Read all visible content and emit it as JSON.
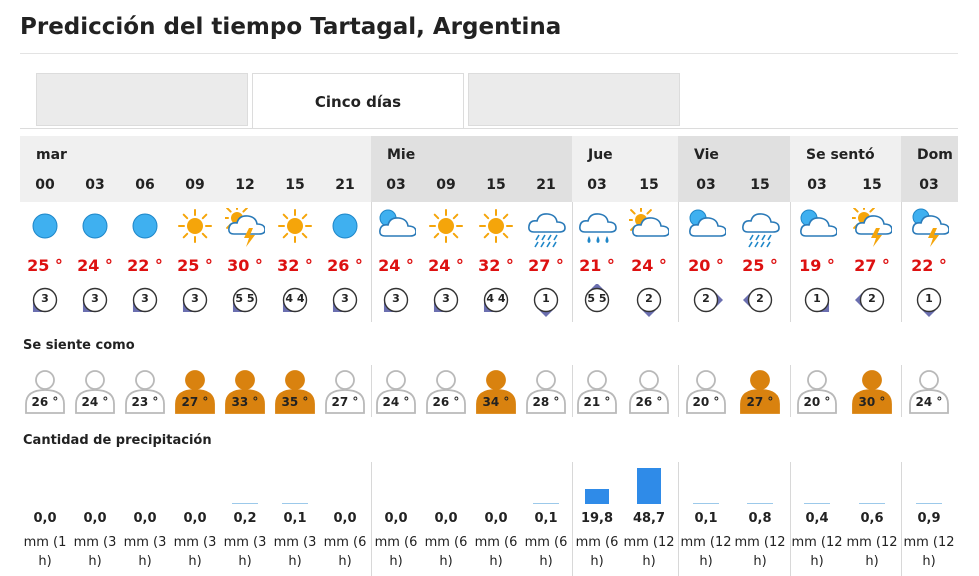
{
  "page": {
    "title": "Predicción del tiempo Tartagal, Argentina"
  },
  "tabs": [
    {
      "label": ""
    },
    {
      "label": "Cinco días",
      "active": true
    },
    {
      "label": ""
    }
  ],
  "days": [
    {
      "label": "mar",
      "shade": "light",
      "hours": [
        "00",
        "03",
        "06",
        "09",
        "12",
        "15",
        "21"
      ]
    },
    {
      "label": "Mie",
      "shade": "dark",
      "hours": [
        "03",
        "09",
        "15",
        "21"
      ]
    },
    {
      "label": "Jue",
      "shade": "light",
      "hours": [
        "03",
        "15"
      ]
    },
    {
      "label": "Vie",
      "shade": "dark",
      "hours": [
        "03",
        "15"
      ]
    },
    {
      "label": "Se sentó",
      "shade": "light",
      "hours": [
        "03",
        "15"
      ]
    },
    {
      "label": "Dom",
      "shade": "dark",
      "hours": [
        "03"
      ]
    }
  ],
  "forecast": [
    {
      "icon": "moon-icon",
      "temp": "25 °",
      "wind": "3",
      "wind_dir": "sw",
      "feel": "26 °",
      "hot": false,
      "precip": 0.0,
      "precip_text": "0,0",
      "unit": [
        "mm (1",
        "h)"
      ]
    },
    {
      "icon": "moon-icon",
      "temp": "24 °",
      "wind": "3",
      "wind_dir": "sw",
      "feel": "24 °",
      "hot": false,
      "precip": 0.0,
      "precip_text": "0,0",
      "unit": [
        "mm (3",
        "h)"
      ]
    },
    {
      "icon": "moon-icon",
      "temp": "22 °",
      "wind": "3",
      "wind_dir": "sw",
      "feel": "23 °",
      "hot": false,
      "precip": 0.0,
      "precip_text": "0,0",
      "unit": [
        "mm (3",
        "h)"
      ]
    },
    {
      "icon": "sun-icon",
      "temp": "25 °",
      "wind": "3",
      "wind_dir": "sw",
      "feel": "27 °",
      "hot": true,
      "precip": 0.0,
      "precip_text": "0,0",
      "unit": [
        "mm (3",
        "h)"
      ]
    },
    {
      "icon": "sun-cloud-storm-icon",
      "temp": "30 °",
      "wind": "5 5",
      "wind_dir": "sw",
      "feel": "33 °",
      "hot": true,
      "precip": 0.2,
      "precip_text": "0,2",
      "unit": [
        "mm (3",
        "h)"
      ]
    },
    {
      "icon": "sun-icon",
      "temp": "32 °",
      "wind": "4 4",
      "wind_dir": "sw",
      "feel": "35 °",
      "hot": true,
      "precip": 0.1,
      "precip_text": "0,1",
      "unit": [
        "mm (3",
        "h)"
      ]
    },
    {
      "icon": "moon-icon",
      "temp": "26 °",
      "wind": "3",
      "wind_dir": "sw",
      "feel": "27 °",
      "hot": false,
      "precip": 0.0,
      "precip_text": "0,0",
      "unit": [
        "mm (6",
        "h)"
      ]
    },
    {
      "icon": "moon-cloud-icon",
      "temp": "24 °",
      "wind": "3",
      "wind_dir": "sw",
      "feel": "24 °",
      "hot": false,
      "precip": 0.0,
      "precip_text": "0,0",
      "unit": [
        "mm (6",
        "h)"
      ]
    },
    {
      "icon": "sun-icon",
      "temp": "24 °",
      "wind": "3",
      "wind_dir": "sw",
      "feel": "26 °",
      "hot": false,
      "precip": 0.0,
      "precip_text": "0,0",
      "unit": [
        "mm (6",
        "h)"
      ]
    },
    {
      "icon": "sun-icon",
      "temp": "32 °",
      "wind": "4 4",
      "wind_dir": "sw",
      "feel": "34 °",
      "hot": true,
      "precip": 0.0,
      "precip_text": "0,0",
      "unit": [
        "mm (6",
        "h)"
      ]
    },
    {
      "icon": "cloud-rain-icon",
      "temp": "27 °",
      "wind": "1",
      "wind_dir": "s",
      "feel": "28 °",
      "hot": false,
      "precip": 0.1,
      "precip_text": "0,1",
      "unit": [
        "mm (6",
        "h)"
      ]
    },
    {
      "icon": "cloud-heavy-rain-icon",
      "temp": "21 °",
      "wind": "5 5",
      "wind_dir": "n",
      "feel": "21 °",
      "hot": false,
      "precip": 19.8,
      "precip_text": "19,8",
      "unit": [
        "mm (6",
        "h)"
      ]
    },
    {
      "icon": "sun-cloud-icon",
      "temp": "24 °",
      "wind": "2",
      "wind_dir": "s",
      "feel": "26 °",
      "hot": false,
      "precip": 48.7,
      "precip_text": "48,7",
      "unit": [
        "mm (12",
        "h)"
      ]
    },
    {
      "icon": "moon-cloud-icon",
      "temp": "20 °",
      "wind": "2",
      "wind_dir": "e",
      "feel": "20 °",
      "hot": false,
      "precip": 0.1,
      "precip_text": "0,1",
      "unit": [
        "mm (12",
        "h)"
      ]
    },
    {
      "icon": "cloud-rain-icon",
      "temp": "25 °",
      "wind": "2",
      "wind_dir": "w",
      "feel": "27 °",
      "hot": true,
      "precip": 0.8,
      "precip_text": "0,8",
      "unit": [
        "mm (12",
        "h)"
      ]
    },
    {
      "icon": "moon-cloud-icon",
      "temp": "19 °",
      "wind": "1",
      "wind_dir": "se",
      "feel": "20 °",
      "hot": false,
      "precip": 0.4,
      "precip_text": "0,4",
      "unit": [
        "mm (12",
        "h)"
      ]
    },
    {
      "icon": "sun-cloud-storm-icon",
      "temp": "27 °",
      "wind": "2",
      "wind_dir": "w",
      "feel": "30 °",
      "hot": true,
      "precip": 0.6,
      "precip_text": "0,6",
      "unit": [
        "mm (12",
        "h)"
      ]
    },
    {
      "icon": "moon-cloud-storm-icon",
      "temp": "22 °",
      "wind": "1",
      "wind_dir": "s",
      "feel": "24 °",
      "hot": false,
      "precip": 0.9,
      "precip_text": "0,9",
      "unit": [
        "mm (12",
        "h)"
      ]
    }
  ],
  "sections": {
    "feels_like": "Se siente como",
    "precipitation": "Cantidad de precipitación"
  },
  "colors": {
    "temp": "#dd1111",
    "moon": "#3fb0f0",
    "sun": "#f5a50a",
    "hot_person": "#d9820f",
    "cool_person": "#b9b9b9",
    "wind_arrow": "#6b6fb0",
    "bar": "#2f8be8"
  }
}
